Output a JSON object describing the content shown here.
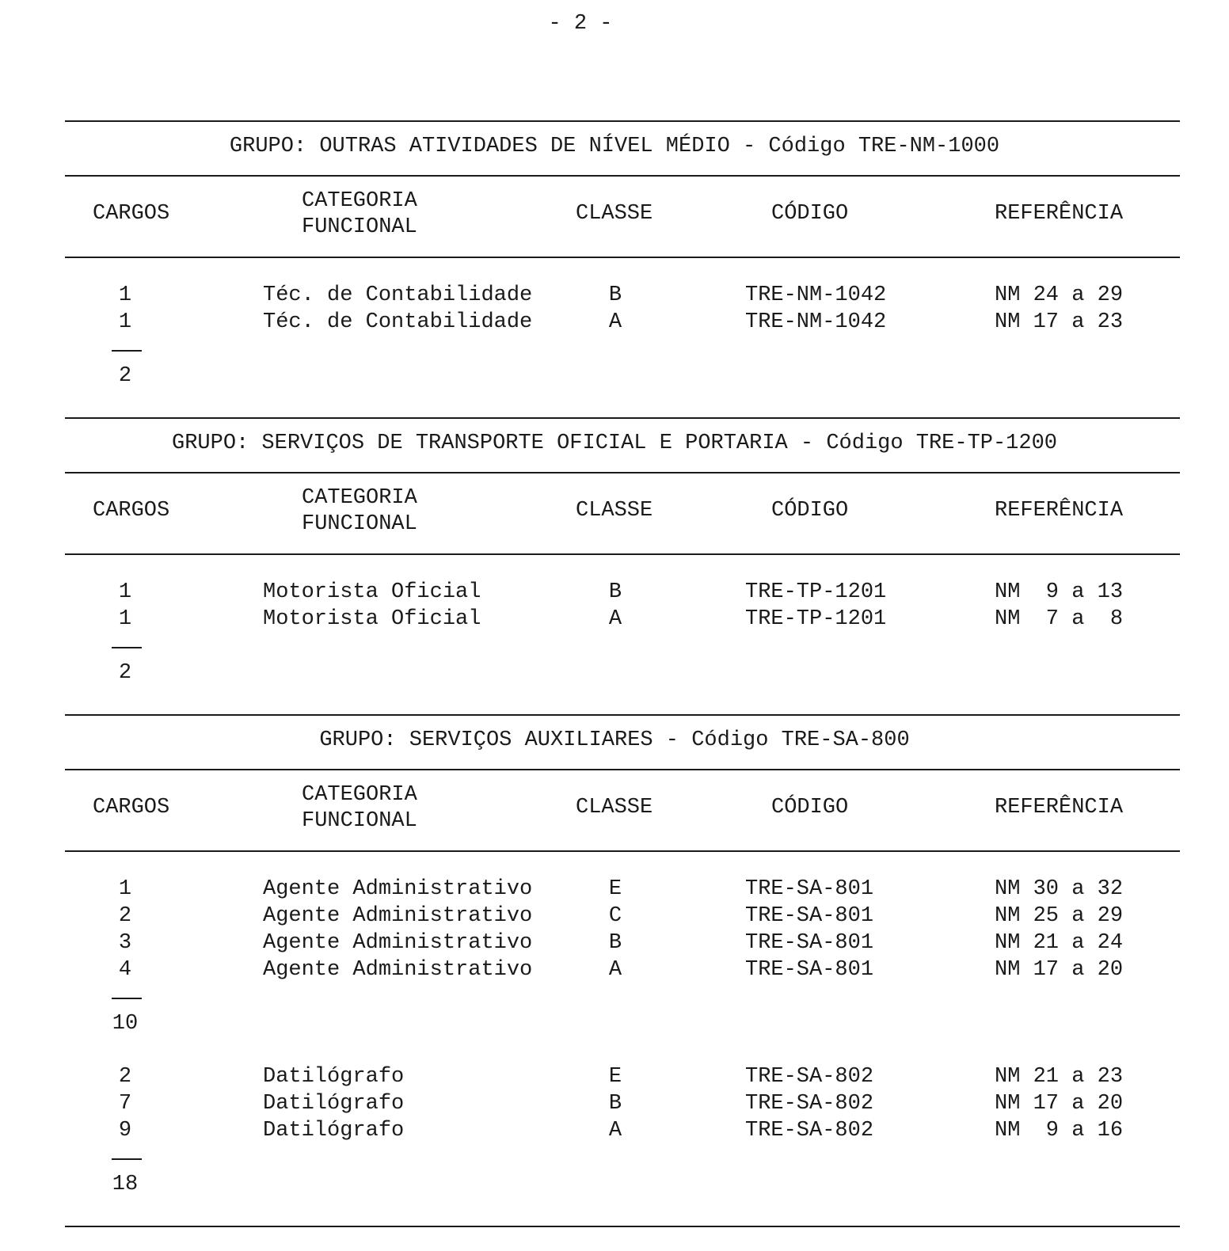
{
  "page_number": "- 2 -",
  "headers": {
    "cargos": "CARGOS",
    "categoria_line1": "CATEGORIA",
    "categoria_line2": "FUNCIONAL",
    "classe": "CLASSE",
    "codigo": "CÓDIGO",
    "referencia": "REFERÊNCIA"
  },
  "groups": [
    {
      "title": "GRUPO: OUTRAS ATIVIDADES DE NÍVEL MÉDIO - Código TRE-NM-1000",
      "blocks": [
        {
          "rows": [
            {
              "cargos": "1",
              "categoria": "Téc. de Contabilidade",
              "classe": "B",
              "codigo": "TRE-NM-1042",
              "referencia": "NM 24 a 29"
            },
            {
              "cargos": "1",
              "categoria": "Téc. de Contabilidade",
              "classe": "A",
              "codigo": "TRE-NM-1042",
              "referencia": "NM 17 a 23"
            }
          ],
          "total": "2"
        }
      ]
    },
    {
      "title": "GRUPO: SERVIÇOS DE TRANSPORTE OFICIAL E PORTARIA - Código TRE-TP-1200",
      "blocks": [
        {
          "rows": [
            {
              "cargos": "1",
              "categoria": "Motorista Oficial",
              "classe": "B",
              "codigo": "TRE-TP-1201",
              "referencia": "NM  9 a 13"
            },
            {
              "cargos": "1",
              "categoria": "Motorista Oficial",
              "classe": "A",
              "codigo": "TRE-TP-1201",
              "referencia": "NM  7 a  8"
            }
          ],
          "total": "2"
        }
      ]
    },
    {
      "title": "GRUPO: SERVIÇOS AUXILIARES - Código TRE-SA-800",
      "blocks": [
        {
          "rows": [
            {
              "cargos": "1",
              "categoria": "Agente Administrativo",
              "classe": "E",
              "codigo": "TRE-SA-801",
              "referencia": "NM 30 a 32"
            },
            {
              "cargos": "2",
              "categoria": "Agente Administrativo",
              "classe": "C",
              "codigo": "TRE-SA-801",
              "referencia": "NM 25 a 29"
            },
            {
              "cargos": "3",
              "categoria": "Agente Administrativo",
              "classe": "B",
              "codigo": "TRE-SA-801",
              "referencia": "NM 21 a 24"
            },
            {
              "cargos": "4",
              "categoria": "Agente Administrativo",
              "classe": "A",
              "codigo": "TRE-SA-801",
              "referencia": "NM 17 a 20"
            }
          ],
          "total": "10"
        },
        {
          "rows": [
            {
              "cargos": "2",
              "categoria": "Datilógrafo",
              "classe": "E",
              "codigo": "TRE-SA-802",
              "referencia": "NM 21 a 23"
            },
            {
              "cargos": "7",
              "categoria": "Datilógrafo",
              "classe": "B",
              "codigo": "TRE-SA-802",
              "referencia": "NM 17 a 20"
            },
            {
              "cargos": "9",
              "categoria": "Datilógrafo",
              "classe": "A",
              "codigo": "TRE-SA-802",
              "referencia": "NM  9 a 16"
            }
          ],
          "total": "18"
        }
      ]
    }
  ]
}
